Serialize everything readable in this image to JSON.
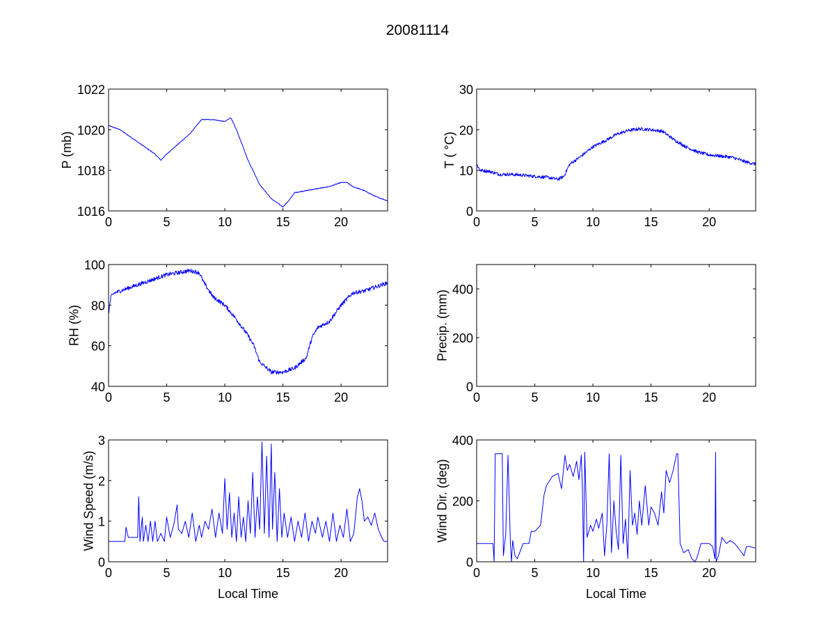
{
  "figure_title": "20081114",
  "chart_data": [
    {
      "type": "line",
      "title": "",
      "xlabel": "",
      "ylabel": "P (mb)",
      "xlim": [
        0,
        24
      ],
      "ylim": [
        1016,
        1022
      ],
      "xticks": [
        0,
        5,
        10,
        15,
        20
      ],
      "yticks": [
        1016,
        1018,
        1020,
        1022
      ],
      "xtick_labels": [
        "0",
        "5",
        "10",
        "15",
        "20"
      ],
      "ytick_labels": [
        "1016",
        "1018",
        "1020",
        "1022"
      ],
      "series": [
        {
          "name": "P (mb)",
          "color": "#0000ff",
          "noise": 0.02,
          "x": [
            0,
            1,
            2,
            3,
            4,
            4.5,
            5,
            6,
            7,
            8,
            9,
            10,
            10.5,
            11,
            12,
            13,
            14,
            15,
            15.5,
            16,
            17,
            18,
            19,
            20,
            20.5,
            21,
            22,
            23,
            24
          ],
          "y": [
            1020.2,
            1020.0,
            1019.6,
            1019.2,
            1018.8,
            1018.5,
            1018.8,
            1019.3,
            1019.8,
            1020.5,
            1020.5,
            1020.4,
            1020.6,
            1020.0,
            1018.5,
            1017.3,
            1016.6,
            1016.2,
            1016.5,
            1016.9,
            1017.0,
            1017.1,
            1017.2,
            1017.4,
            1017.4,
            1017.2,
            1017.0,
            1016.7,
            1016.5
          ]
        }
      ]
    },
    {
      "type": "line",
      "title": "",
      "xlabel": "",
      "ylabel": "T ( °C)",
      "xlim": [
        0,
        24
      ],
      "ylim": [
        0,
        30
      ],
      "xticks": [
        0,
        5,
        10,
        15,
        20
      ],
      "yticks": [
        0,
        10,
        20,
        30
      ],
      "xtick_labels": [
        "0",
        "5",
        "10",
        "15",
        "20"
      ],
      "ytick_labels": [
        "0",
        "10",
        "20",
        "30"
      ],
      "series": [
        {
          "name": "T",
          "color": "#0000ff",
          "noise": 0.4,
          "x": [
            0,
            0.3,
            1,
            2,
            3,
            4,
            5,
            6,
            7,
            7.5,
            8,
            9,
            10,
            11,
            12,
            13,
            14,
            15,
            16,
            17,
            18,
            19,
            20,
            21,
            22,
            23,
            24
          ],
          "y": [
            11.5,
            10.0,
            9.8,
            9.0,
            9.0,
            8.8,
            8.5,
            8.3,
            7.8,
            8.5,
            11.5,
            13.5,
            15.8,
            17.2,
            18.8,
            19.8,
            20.2,
            20.0,
            19.6,
            17.5,
            15.8,
            14.5,
            13.8,
            13.5,
            13.2,
            12.2,
            11.5
          ]
        }
      ]
    },
    {
      "type": "line",
      "title": "",
      "xlabel": "",
      "ylabel": "RH (%)",
      "xlim": [
        0,
        24
      ],
      "ylim": [
        40,
        100
      ],
      "xticks": [
        0,
        5,
        10,
        15,
        20
      ],
      "yticks": [
        40,
        60,
        80,
        100
      ],
      "xtick_labels": [
        "0",
        "5",
        "10",
        "15",
        "20"
      ],
      "ytick_labels": [
        "40",
        "60",
        "80",
        "100"
      ],
      "series": [
        {
          "name": "RH",
          "color": "#0000ff",
          "noise": 1.0,
          "x": [
            0,
            0.2,
            0.5,
            1,
            2,
            3,
            4,
            5,
            6,
            7,
            7.8,
            8.2,
            9,
            10,
            11,
            12,
            12.5,
            13,
            14,
            15,
            16,
            17,
            17.5,
            18,
            19,
            20,
            21,
            22,
            23,
            24
          ],
          "y": [
            76,
            84,
            86,
            87,
            89,
            91,
            93,
            95,
            96,
            97,
            96,
            91,
            84,
            80,
            73,
            65,
            60,
            52,
            47,
            47,
            49,
            54,
            64,
            69,
            72,
            80,
            86,
            87,
            89,
            91
          ]
        }
      ]
    },
    {
      "type": "line",
      "title": "",
      "xlabel": "",
      "ylabel": "Precip. (mm)",
      "xlim": [
        0,
        24
      ],
      "ylim": [
        0,
        500
      ],
      "xticks": [
        0,
        5,
        10,
        15,
        20
      ],
      "yticks": [
        0,
        200,
        400
      ],
      "xtick_labels": [
        "0",
        "5",
        "10",
        "15",
        "20"
      ],
      "ytick_labels": [
        "0",
        "200",
        "400"
      ],
      "series": []
    },
    {
      "type": "line",
      "title": "",
      "xlabel": "Local Time",
      "ylabel": "Wind Speed (m/s)",
      "xlim": [
        0,
        24
      ],
      "ylim": [
        0,
        3
      ],
      "xticks": [
        0,
        5,
        10,
        15,
        20
      ],
      "yticks": [
        0,
        1,
        2,
        3
      ],
      "xtick_labels": [
        "0",
        "5",
        "10",
        "15",
        "20"
      ],
      "ytick_labels": [
        "0",
        "1",
        "2",
        "3"
      ],
      "series": [
        {
          "name": "Wind Speed",
          "color": "#0000ff",
          "noise": 0,
          "x": [
            0,
            1.4,
            1.5,
            1.7,
            2.5,
            2.6,
            2.7,
            2.9,
            3.0,
            3.2,
            3.4,
            3.6,
            3.8,
            4.0,
            4.2,
            4.5,
            4.8,
            5.0,
            5.3,
            5.6,
            5.9,
            6.0,
            6.3,
            6.6,
            6.9,
            7.2,
            7.5,
            7.8,
            8.0,
            8.3,
            8.6,
            8.9,
            9.2,
            9.5,
            9.8,
            10.0,
            10.2,
            10.4,
            10.6,
            10.8,
            11.0,
            11.2,
            11.4,
            11.6,
            11.8,
            12.0,
            12.2,
            12.4,
            12.6,
            12.8,
            13.0,
            13.2,
            13.4,
            13.6,
            13.8,
            14.0,
            14.1,
            14.3,
            14.5,
            14.7,
            14.9,
            15.1,
            15.4,
            15.7,
            16.0,
            16.3,
            16.6,
            16.9,
            17.2,
            17.5,
            17.8,
            18.0,
            18.4,
            18.7,
            19.0,
            19.3,
            19.6,
            19.9,
            20.2,
            20.5,
            20.8,
            21.1,
            21.4,
            21.6,
            21.8,
            22.0,
            22.3,
            22.6,
            22.9,
            23.2,
            23.5,
            23.7,
            24
          ],
          "y": [
            0.5,
            0.5,
            0.85,
            0.6,
            0.6,
            1.6,
            0.5,
            1.1,
            0.5,
            0.9,
            0.5,
            1.0,
            0.5,
            1.0,
            0.5,
            0.7,
            0.5,
            1.1,
            0.6,
            0.9,
            1.4,
            0.8,
            0.7,
            1.0,
            0.6,
            1.2,
            0.5,
            0.9,
            0.6,
            1.0,
            0.8,
            1.3,
            0.6,
            1.2,
            0.7,
            2.05,
            0.8,
            1.7,
            0.6,
            1.2,
            0.5,
            1.6,
            0.6,
            1.1,
            0.5,
            1.5,
            0.7,
            2.2,
            0.6,
            1.6,
            0.8,
            2.95,
            0.7,
            2.6,
            0.6,
            2.9,
            0.8,
            2.2,
            0.5,
            1.8,
            0.6,
            1.2,
            0.6,
            1.1,
            0.5,
            1.0,
            0.6,
            1.2,
            0.5,
            1.0,
            0.7,
            1.1,
            0.6,
            1.0,
            0.5,
            1.2,
            0.5,
            0.9,
            0.6,
            1.3,
            0.5,
            0.7,
            1.6,
            1.8,
            1.5,
            1.0,
            1.1,
            0.9,
            1.2,
            0.8,
            0.6,
            0.5,
            0.5
          ]
        }
      ]
    },
    {
      "type": "line",
      "title": "",
      "xlabel": "Local Time",
      "ylabel": "Wind Dir. (deg)",
      "xlim": [
        0,
        24
      ],
      "ylim": [
        0,
        400
      ],
      "xticks": [
        0,
        5,
        10,
        15,
        20
      ],
      "yticks": [
        0,
        200,
        400
      ],
      "xtick_labels": [
        "0",
        "5",
        "10",
        "15",
        "20"
      ],
      "ytick_labels": [
        "0",
        "200",
        "400"
      ],
      "series": [
        {
          "name": "Wind Dir.",
          "color": "#0000ff",
          "noise": 0,
          "x": [
            0,
            1.4,
            1.5,
            1.6,
            2.2,
            2.3,
            2.5,
            2.7,
            2.9,
            3.0,
            3.1,
            3.3,
            3.5,
            4.0,
            4.5,
            4.7,
            5.0,
            5.5,
            5.8,
            6.0,
            6.5,
            7.0,
            7.3,
            7.6,
            7.8,
            8.0,
            8.3,
            8.6,
            8.8,
            9.0,
            9.1,
            9.2,
            9.3,
            9.5,
            9.8,
            10.0,
            10.3,
            10.5,
            10.8,
            11.0,
            11.2,
            11.4,
            11.6,
            11.8,
            12.0,
            12.2,
            12.4,
            12.6,
            12.8,
            13.0,
            13.2,
            13.4,
            13.6,
            13.8,
            14.0,
            14.2,
            14.5,
            14.8,
            15.0,
            15.3,
            15.6,
            15.9,
            16.1,
            16.3,
            16.6,
            16.9,
            17.2,
            17.3,
            17.5,
            17.8,
            18.2,
            18.5,
            18.8,
            19.0,
            19.3,
            19.6,
            20.0,
            20.3,
            20.5,
            20.55,
            20.6,
            20.8,
            21.1,
            21.5,
            21.8,
            22.2,
            22.6,
            23.0,
            23.2,
            23.5,
            24
          ],
          "y": [
            60,
            60,
            0,
            355,
            355,
            20,
            90,
            350,
            60,
            0,
            70,
            20,
            10,
            60,
            60,
            100,
            100,
            120,
            220,
            250,
            280,
            290,
            240,
            350,
            300,
            320,
            280,
            330,
            270,
            350,
            240,
            0,
            360,
            80,
            120,
            100,
            140,
            110,
            160,
            20,
            120,
            355,
            30,
            200,
            100,
            40,
            350,
            60,
            140,
            10,
            300,
            120,
            160,
            90,
            200,
            120,
            250,
            120,
            180,
            160,
            120,
            230,
            160,
            300,
            260,
            300,
            355,
            355,
            60,
            30,
            40,
            10,
            0,
            20,
            60,
            60,
            60,
            50,
            10,
            360,
            0,
            20,
            80,
            60,
            70,
            60,
            40,
            20,
            50,
            50,
            45
          ]
        }
      ]
    }
  ]
}
